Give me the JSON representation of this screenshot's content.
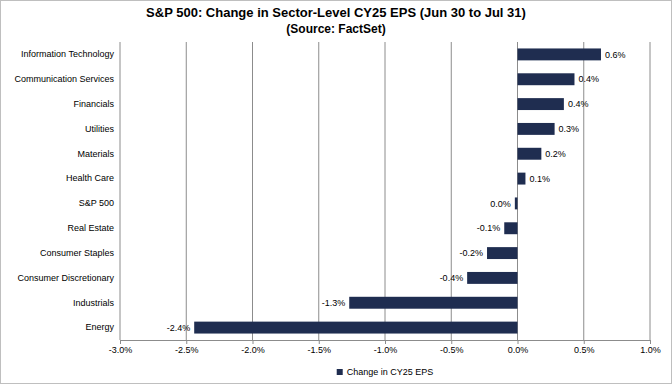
{
  "chart_data": {
    "type": "bar",
    "orientation": "horizontal",
    "title": "S&P 500: Change in Sector-Level CY25 EPS (Jun 30 to Jul 31)",
    "subtitle": "(Source: FactSet)",
    "categories": [
      "Information Technology",
      "Communication Services",
      "Financials",
      "Utilities",
      "Materials",
      "Health Care",
      "S&P 500",
      "Real Estate",
      "Consumer Staples",
      "Consumer Discretionary",
      "Industrials",
      "Energy"
    ],
    "series": [
      {
        "name": "Change in CY25 EPS",
        "color": "#1f2d50",
        "values": [
          0.63,
          0.43,
          0.35,
          0.28,
          0.18,
          0.06,
          -0.02,
          -0.1,
          -0.23,
          -0.38,
          -1.27,
          -2.44
        ],
        "value_labels": [
          "0.6%",
          "0.4%",
          "0.4%",
          "0.3%",
          "0.2%",
          "0.1%",
          "0.0%",
          "-0.1%",
          "-0.2%",
          "-0.4%",
          "-1.3%",
          "-2.4%"
        ]
      }
    ],
    "xlim": [
      -3,
      1
    ],
    "xticks": [
      {
        "value": -3,
        "label": "-3.0%"
      },
      {
        "value": -2.5,
        "label": "-2.5%"
      },
      {
        "value": -2,
        "label": "-2.0%"
      },
      {
        "value": -1.5,
        "label": "-1.5%"
      },
      {
        "value": -1,
        "label": "-1.0%"
      },
      {
        "value": -0.5,
        "label": "-0.5%"
      },
      {
        "value": 0,
        "label": "0.0%"
      },
      {
        "value": 0.5,
        "label": "0.5%"
      },
      {
        "value": 1,
        "label": "1.0%"
      }
    ],
    "grid": true,
    "data_labels": true,
    "legend": "bottom"
  }
}
